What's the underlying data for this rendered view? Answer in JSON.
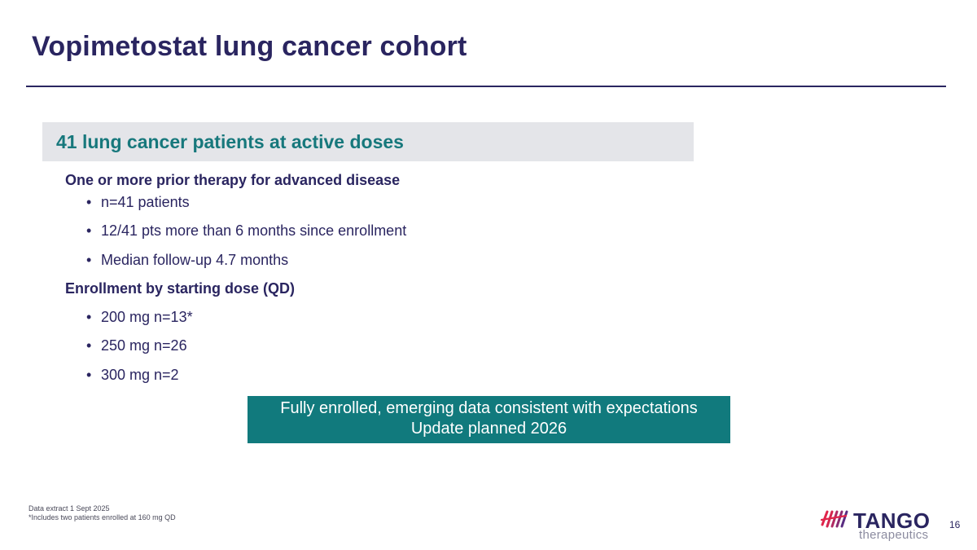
{
  "slide": {
    "title": "Vopimetostat lung cancer cohort",
    "section_title": "41 lung cancer patients at active doses",
    "groups": [
      {
        "heading": "One or more prior therapy for advanced disease",
        "bullets": [
          "n=41 patients",
          "12/41 pts more than 6 months since enrollment",
          "Median follow-up 4.7 months"
        ]
      },
      {
        "heading": "Enrollment by starting dose (QD)",
        "bullets": [
          "200 mg n=13*",
          "250 mg n=26",
          "300 mg n=2"
        ]
      }
    ],
    "callout": {
      "line1": "Fully enrolled, emerging data consistent with expectations",
      "line2": "Update planned 2026"
    },
    "footnotes": [
      "Data extract 1 Sept 2025",
      "*Includes two patients enrolled at 160 mg QD"
    ],
    "page_number": "16"
  },
  "logo": {
    "name": "TANGO",
    "sub": "therapeutics",
    "mark_icon": "tango-stripes-icon"
  },
  "colors": {
    "navy": "#2a2560",
    "teal": "#17787c",
    "callout_bg": "#117a7d",
    "section_bg": "#e4e5e9",
    "logo_red": "#e0244a",
    "logo_purple": "#5a2d82"
  }
}
